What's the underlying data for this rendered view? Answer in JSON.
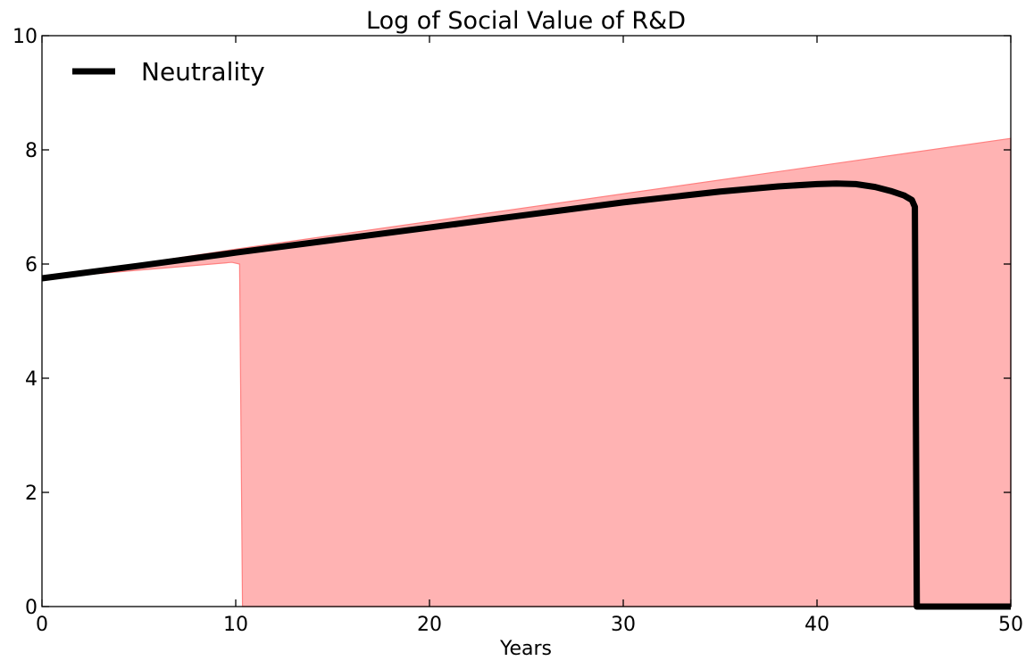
{
  "chart_data": {
    "type": "line",
    "title": "Log of Social Value of R&D",
    "xlabel": "Years",
    "ylabel": "",
    "xlim": [
      0,
      50
    ],
    "ylim": [
      0,
      10
    ],
    "xticks": [
      0,
      10,
      20,
      30,
      40,
      50
    ],
    "yticks": [
      0,
      2,
      4,
      6,
      8,
      10
    ],
    "grid": false,
    "legend": {
      "position": "top-left",
      "entries": [
        {
          "label": "Neutrality",
          "color": "#000000"
        }
      ]
    },
    "series": [
      {
        "name": "Neutrality",
        "color": "#000000",
        "points": [
          [
            0,
            5.75
          ],
          [
            5,
            5.97
          ],
          [
            10,
            6.2
          ],
          [
            15,
            6.42
          ],
          [
            20,
            6.64
          ],
          [
            25,
            6.86
          ],
          [
            30,
            7.08
          ],
          [
            35,
            7.27
          ],
          [
            38,
            7.36
          ],
          [
            40,
            7.4
          ],
          [
            41,
            7.41
          ],
          [
            42,
            7.4
          ],
          [
            43,
            7.35
          ],
          [
            43.8,
            7.28
          ],
          [
            44.5,
            7.2
          ],
          [
            44.9,
            7.12
          ],
          [
            45.05,
            7.0
          ],
          [
            45.15,
            0.0
          ],
          [
            50,
            0.0
          ]
        ]
      }
    ],
    "band": {
      "color": "#ffb3b3",
      "edge_color": "#ff8080",
      "upper": [
        [
          0,
          5.75
        ],
        [
          10.2,
          6.27
        ],
        [
          50,
          8.2
        ]
      ],
      "lower": [
        [
          0,
          5.75
        ],
        [
          9.8,
          6.03
        ],
        [
          10.2,
          6.0
        ],
        [
          10.35,
          0.0
        ],
        [
          50,
          0.0
        ]
      ]
    }
  }
}
